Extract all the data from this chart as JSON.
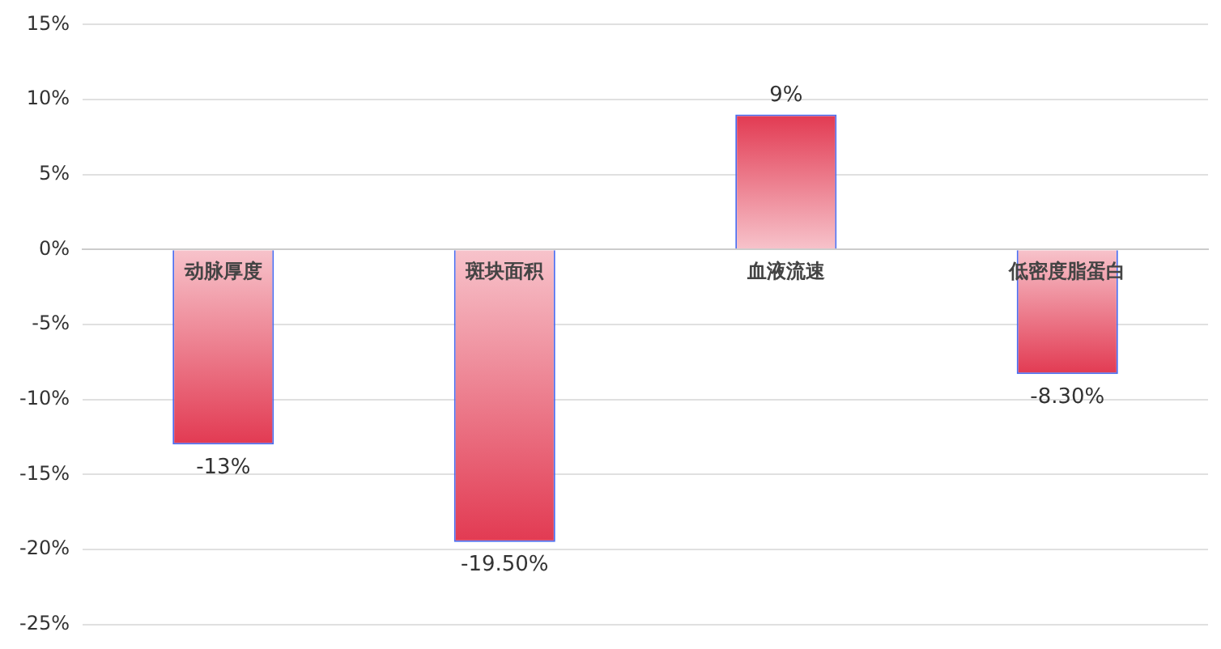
{
  "chart_data": {
    "type": "bar",
    "categories": [
      "动脉厚度",
      "斑块面积",
      "血液流速",
      "低密度脂蛋白"
    ],
    "values": [
      -13,
      -19.5,
      9,
      -8.3
    ],
    "value_labels": [
      "-13%",
      "-19.50%",
      "9%",
      "-8.30%"
    ],
    "color": "#e23a52",
    "ylim": [
      -25,
      15
    ],
    "yticks": [
      {
        "value": -25,
        "label": "-25%"
      },
      {
        "value": -20,
        "label": "-20%"
      },
      {
        "value": -15,
        "label": "-15%"
      },
      {
        "value": -10,
        "label": "-10%"
      },
      {
        "value": -5,
        "label": "-5%"
      },
      {
        "value": 0,
        "label": "0%"
      },
      {
        "value": 5,
        "label": "5%"
      },
      {
        "value": 10,
        "label": "10%"
      },
      {
        "value": 15,
        "label": "15%"
      }
    ],
    "grid": "y",
    "legend": false
  }
}
